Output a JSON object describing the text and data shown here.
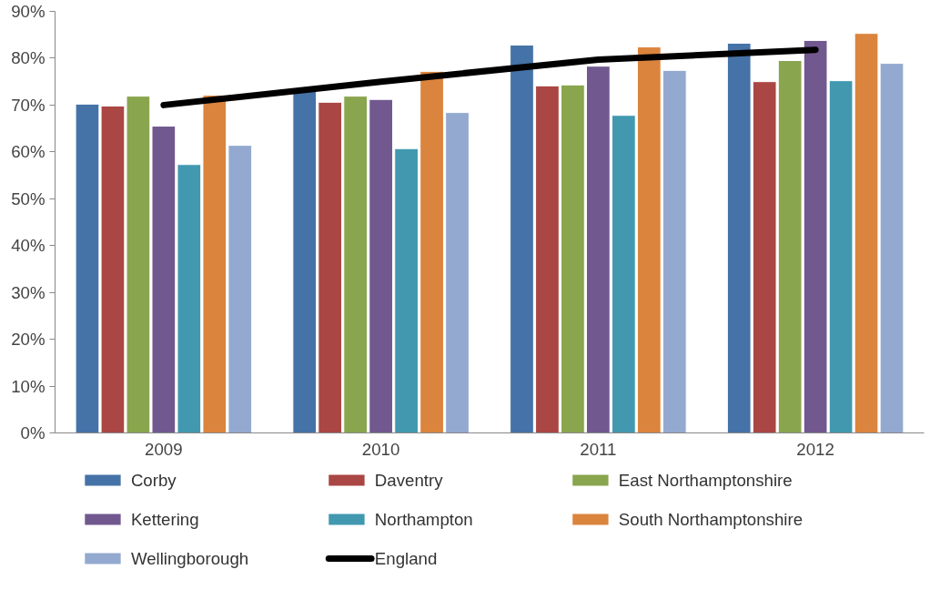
{
  "chart_data": {
    "type": "bar",
    "categories": [
      "2009",
      "2010",
      "2011",
      "2012"
    ],
    "ylim": [
      0,
      90
    ],
    "yticks": [
      {
        "value": 0,
        "label": "0%"
      },
      {
        "value": 10,
        "label": "10%"
      },
      {
        "value": 20,
        "label": "20%"
      },
      {
        "value": 30,
        "label": "30%"
      },
      {
        "value": 40,
        "label": "40%"
      },
      {
        "value": 50,
        "label": "50%"
      },
      {
        "value": 60,
        "label": "60%"
      },
      {
        "value": 70,
        "label": "70%"
      },
      {
        "value": 80,
        "label": "80%"
      },
      {
        "value": 90,
        "label": "90%"
      }
    ],
    "grid": false,
    "legend": "bottom",
    "series": [
      {
        "name": "Corby",
        "color": "#4572a7",
        "values": [
          70.2,
          73.5,
          82.8,
          83.2
        ]
      },
      {
        "name": "Daventry",
        "color": "#aa4643",
        "values": [
          69.8,
          70.6,
          74.1,
          75.0
        ]
      },
      {
        "name": "East Northamptonshire",
        "color": "#89a54e",
        "values": [
          71.9,
          71.9,
          74.3,
          79.5
        ]
      },
      {
        "name": "Kettering",
        "color": "#71588f",
        "values": [
          65.5,
          71.2,
          78.3,
          83.8
        ]
      },
      {
        "name": "Northampton",
        "color": "#4198af",
        "values": [
          57.3,
          60.7,
          67.8,
          75.2
        ]
      },
      {
        "name": "South Northamptonshire",
        "color": "#db843d",
        "values": [
          72.1,
          77.2,
          82.4,
          85.3
        ]
      },
      {
        "name": "Wellingborough",
        "color": "#93a9cf",
        "values": [
          61.4,
          68.4,
          77.4,
          78.9
        ]
      },
      {
        "name": "England",
        "type": "line",
        "color": "#000000",
        "values": [
          70.0,
          75.0,
          79.7,
          81.8
        ]
      }
    ]
  }
}
